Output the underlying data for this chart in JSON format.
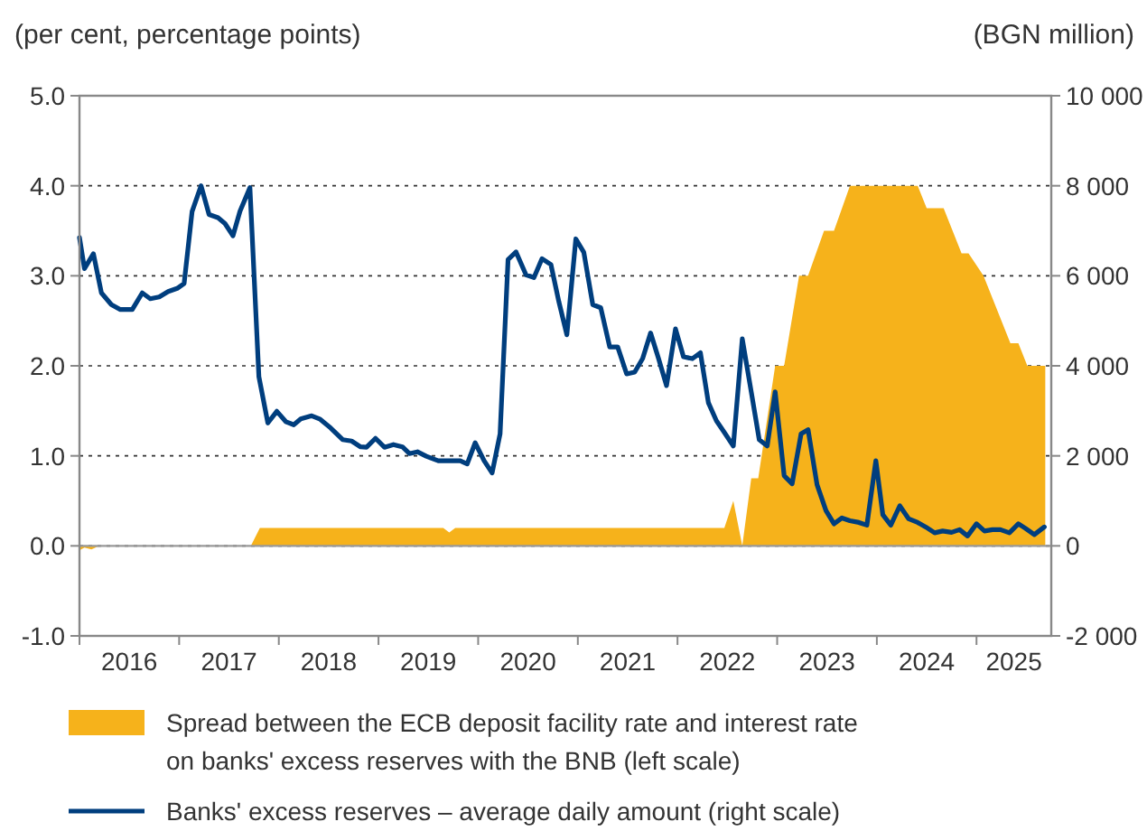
{
  "chart_data": {
    "type": "area",
    "ylabel": "(per cent, percentage points)",
    "y2label": "(BGN million)",
    "xlim": [
      2016,
      2025.75
    ],
    "xticks": [
      {
        "value": 2016,
        "label": null
      },
      {
        "value": 2016.5,
        "label": "2016"
      },
      {
        "value": 2017,
        "label": null
      },
      {
        "value": 2017.5,
        "label": "2017"
      },
      {
        "value": 2018,
        "label": null
      },
      {
        "value": 2018.5,
        "label": "2018"
      },
      {
        "value": 2019,
        "label": null
      },
      {
        "value": 2019.5,
        "label": "2019"
      },
      {
        "value": 2020,
        "label": null
      },
      {
        "value": 2020.5,
        "label": "2020"
      },
      {
        "value": 2021,
        "label": null
      },
      {
        "value": 2021.5,
        "label": "2021"
      },
      {
        "value": 2022,
        "label": null
      },
      {
        "value": 2022.5,
        "label": "2022"
      },
      {
        "value": 2023,
        "label": null
      },
      {
        "value": 2023.5,
        "label": "2023"
      },
      {
        "value": 2024,
        "label": null
      },
      {
        "value": 2024.5,
        "label": "2024"
      },
      {
        "value": 2025,
        "label": null
      },
      {
        "value": 2025.375,
        "label": "2025"
      }
    ],
    "ylim": [
      -1,
      5
    ],
    "yticks": [
      {
        "value": -1,
        "label": "-1.0"
      },
      {
        "value": 0,
        "label": "0.0"
      },
      {
        "value": 1,
        "label": "1.0"
      },
      {
        "value": 2,
        "label": "2.0"
      },
      {
        "value": 3,
        "label": "3.0"
      },
      {
        "value": 4,
        "label": "4.0"
      },
      {
        "value": 5,
        "label": "5.0"
      }
    ],
    "y2lim": [
      -2000,
      10000
    ],
    "y2ticks": [
      {
        "value": -2000,
        "label": "-2 000"
      },
      {
        "value": 0,
        "label": "0"
      },
      {
        "value": 2000,
        "label": "2 000"
      },
      {
        "value": 4000,
        "label": "4 000"
      },
      {
        "value": 6000,
        "label": "6 000"
      },
      {
        "value": 8000,
        "label": "8 000"
      },
      {
        "value": 10000,
        "label": "10 000"
      }
    ],
    "grid": "y",
    "legend": "bottom",
    "ref_lines": [
      {
        "axis": "y",
        "value": 0,
        "color": "#999999",
        "line_style": "solid"
      }
    ],
    "series": [
      {
        "name": "Spread between the ECB deposit facility rate and interest rate on banks' excess reserves with the BNB (left scale)",
        "color": "#f6b21b",
        "x": [
          2016,
          2016.05,
          2016.12,
          2016.2,
          2017.72,
          2017.81,
          2019.65,
          2019.71,
          2019.77,
          2022.47,
          2022.56,
          2022.65,
          2022.74,
          2022.81,
          2022.98,
          2023.07,
          2023.22,
          2023.31,
          2023.47,
          2023.57,
          2023.73,
          2024.41,
          2024.5,
          2024.67,
          2024.85,
          2024.92,
          2025.07,
          2025.34,
          2025.42,
          2025.51,
          2025.69
        ],
        "values": [
          -0.05,
          -0.02,
          -0.04,
          0,
          0,
          0.2,
          0.2,
          0.15,
          0.2,
          0.2,
          0.5,
          0,
          0.75,
          0.75,
          2,
          2,
          3,
          3,
          3.5,
          3.5,
          4,
          4,
          3.75,
          3.75,
          3.25,
          3.25,
          3,
          2.25,
          2.25,
          2,
          2
        ]
      },
      {
        "name": "Banks' excess reserves – average daily amount (right scale)",
        "type": "line",
        "axis": "y2",
        "color": "#003e7e",
        "x": [
          2016,
          2016.05,
          2016.14,
          2016.22,
          2016.32,
          2016.41,
          2016.53,
          2016.63,
          2016.71,
          2016.8,
          2016.89,
          2016.98,
          2017.05,
          2017.13,
          2017.22,
          2017.3,
          2017.39,
          2017.46,
          2017.54,
          2017.61,
          2017.71,
          2017.8,
          2017.89,
          2017.98,
          2018.07,
          2018.15,
          2018.22,
          2018.33,
          2018.41,
          2018.52,
          2018.64,
          2018.73,
          2018.82,
          2018.88,
          2018.97,
          2019.06,
          2019.15,
          2019.24,
          2019.31,
          2019.39,
          2019.48,
          2019.6,
          2019.73,
          2019.82,
          2019.89,
          2019.97,
          2020.06,
          2020.14,
          2020.22,
          2020.3,
          2020.38,
          2020.48,
          2020.56,
          2020.64,
          2020.73,
          2020.81,
          2020.89,
          2020.98,
          2021.06,
          2021.15,
          2021.23,
          2021.32,
          2021.4,
          2021.49,
          2021.57,
          2021.65,
          2021.73,
          2021.81,
          2021.89,
          2021.98,
          2022.06,
          2022.15,
          2022.23,
          2022.31,
          2022.39,
          2022.47,
          2022.56,
          2022.65,
          2022.74,
          2022.82,
          2022.9,
          2022.98,
          2023.07,
          2023.15,
          2023.24,
          2023.31,
          2023.4,
          2023.49,
          2023.57,
          2023.65,
          2023.73,
          2023.82,
          2023.9,
          2023.99,
          2024.06,
          2024.14,
          2024.23,
          2024.32,
          2024.41,
          2024.49,
          2024.58,
          2024.66,
          2024.75,
          2024.83,
          2024.91,
          2025,
          2025.08,
          2025.16,
          2025.24,
          2025.33,
          2025.42,
          2025.49,
          2025.58,
          2025.68
        ],
        "values": [
          6850,
          6160,
          6490,
          5620,
          5360,
          5250,
          5250,
          5620,
          5490,
          5530,
          5650,
          5720,
          5830,
          7430,
          8000,
          7360,
          7290,
          7160,
          6890,
          7430,
          7960,
          3760,
          2730,
          2990,
          2760,
          2690,
          2820,
          2890,
          2820,
          2620,
          2360,
          2330,
          2200,
          2190,
          2390,
          2190,
          2250,
          2200,
          2050,
          2090,
          1990,
          1890,
          1890,
          1890,
          1820,
          2290,
          1890,
          1620,
          2490,
          6360,
          6530,
          6020,
          5960,
          6380,
          6250,
          5420,
          4690,
          6820,
          6520,
          5360,
          5290,
          4420,
          4420,
          3820,
          3860,
          4160,
          4730,
          4160,
          3560,
          4820,
          4200,
          4160,
          4290,
          3180,
          2780,
          2520,
          2220,
          4600,
          3420,
          2360,
          2220,
          3420,
          1560,
          1380,
          2490,
          2580,
          1360,
          780,
          490,
          620,
          560,
          520,
          460,
          1890,
          690,
          460,
          890,
          600,
          520,
          420,
          290,
          330,
          300,
          360,
          220,
          490,
          330,
          360,
          360,
          290,
          490,
          390,
          250,
          420
        ]
      }
    ]
  }
}
